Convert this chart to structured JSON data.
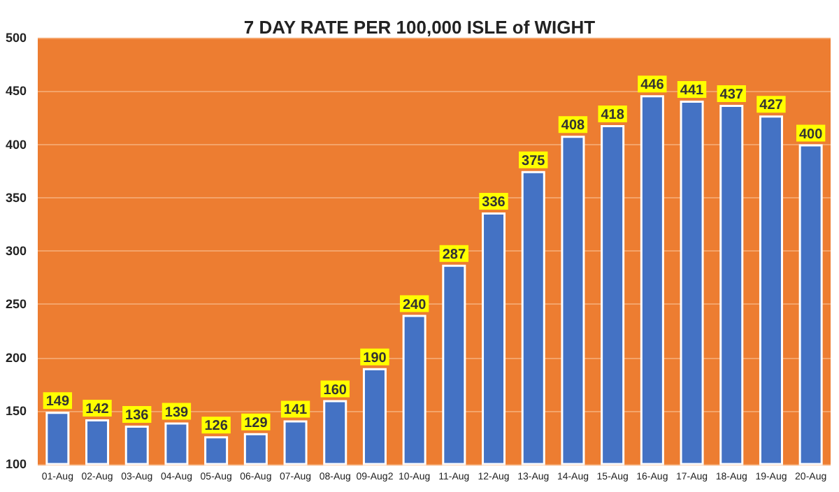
{
  "chart_data": {
    "type": "bar",
    "title": "7 DAY RATE PER 100,000 ISLE of WIGHT",
    "categories": [
      "01-Aug",
      "02-Aug",
      "03-Aug",
      "04-Aug",
      "05-Aug",
      "06-Aug",
      "07-Aug",
      "08-Aug",
      "09-Aug2",
      "10-Aug",
      "11-Aug",
      "12-Aug",
      "13-Aug",
      "14-Aug",
      "15-Aug",
      "16-Aug",
      "17-Aug",
      "18-Aug",
      "19-Aug",
      "20-Aug"
    ],
    "values": [
      149,
      142,
      136,
      139,
      126,
      129,
      141,
      160,
      190,
      240,
      287,
      336,
      375,
      408,
      418,
      446,
      441,
      437,
      427,
      400
    ],
    "color": "#4472c4",
    "ylim": [
      100,
      500
    ],
    "yticks": [
      100,
      150,
      200,
      250,
      300,
      350,
      400,
      450,
      500
    ],
    "grid": "y",
    "data_labels": true
  }
}
